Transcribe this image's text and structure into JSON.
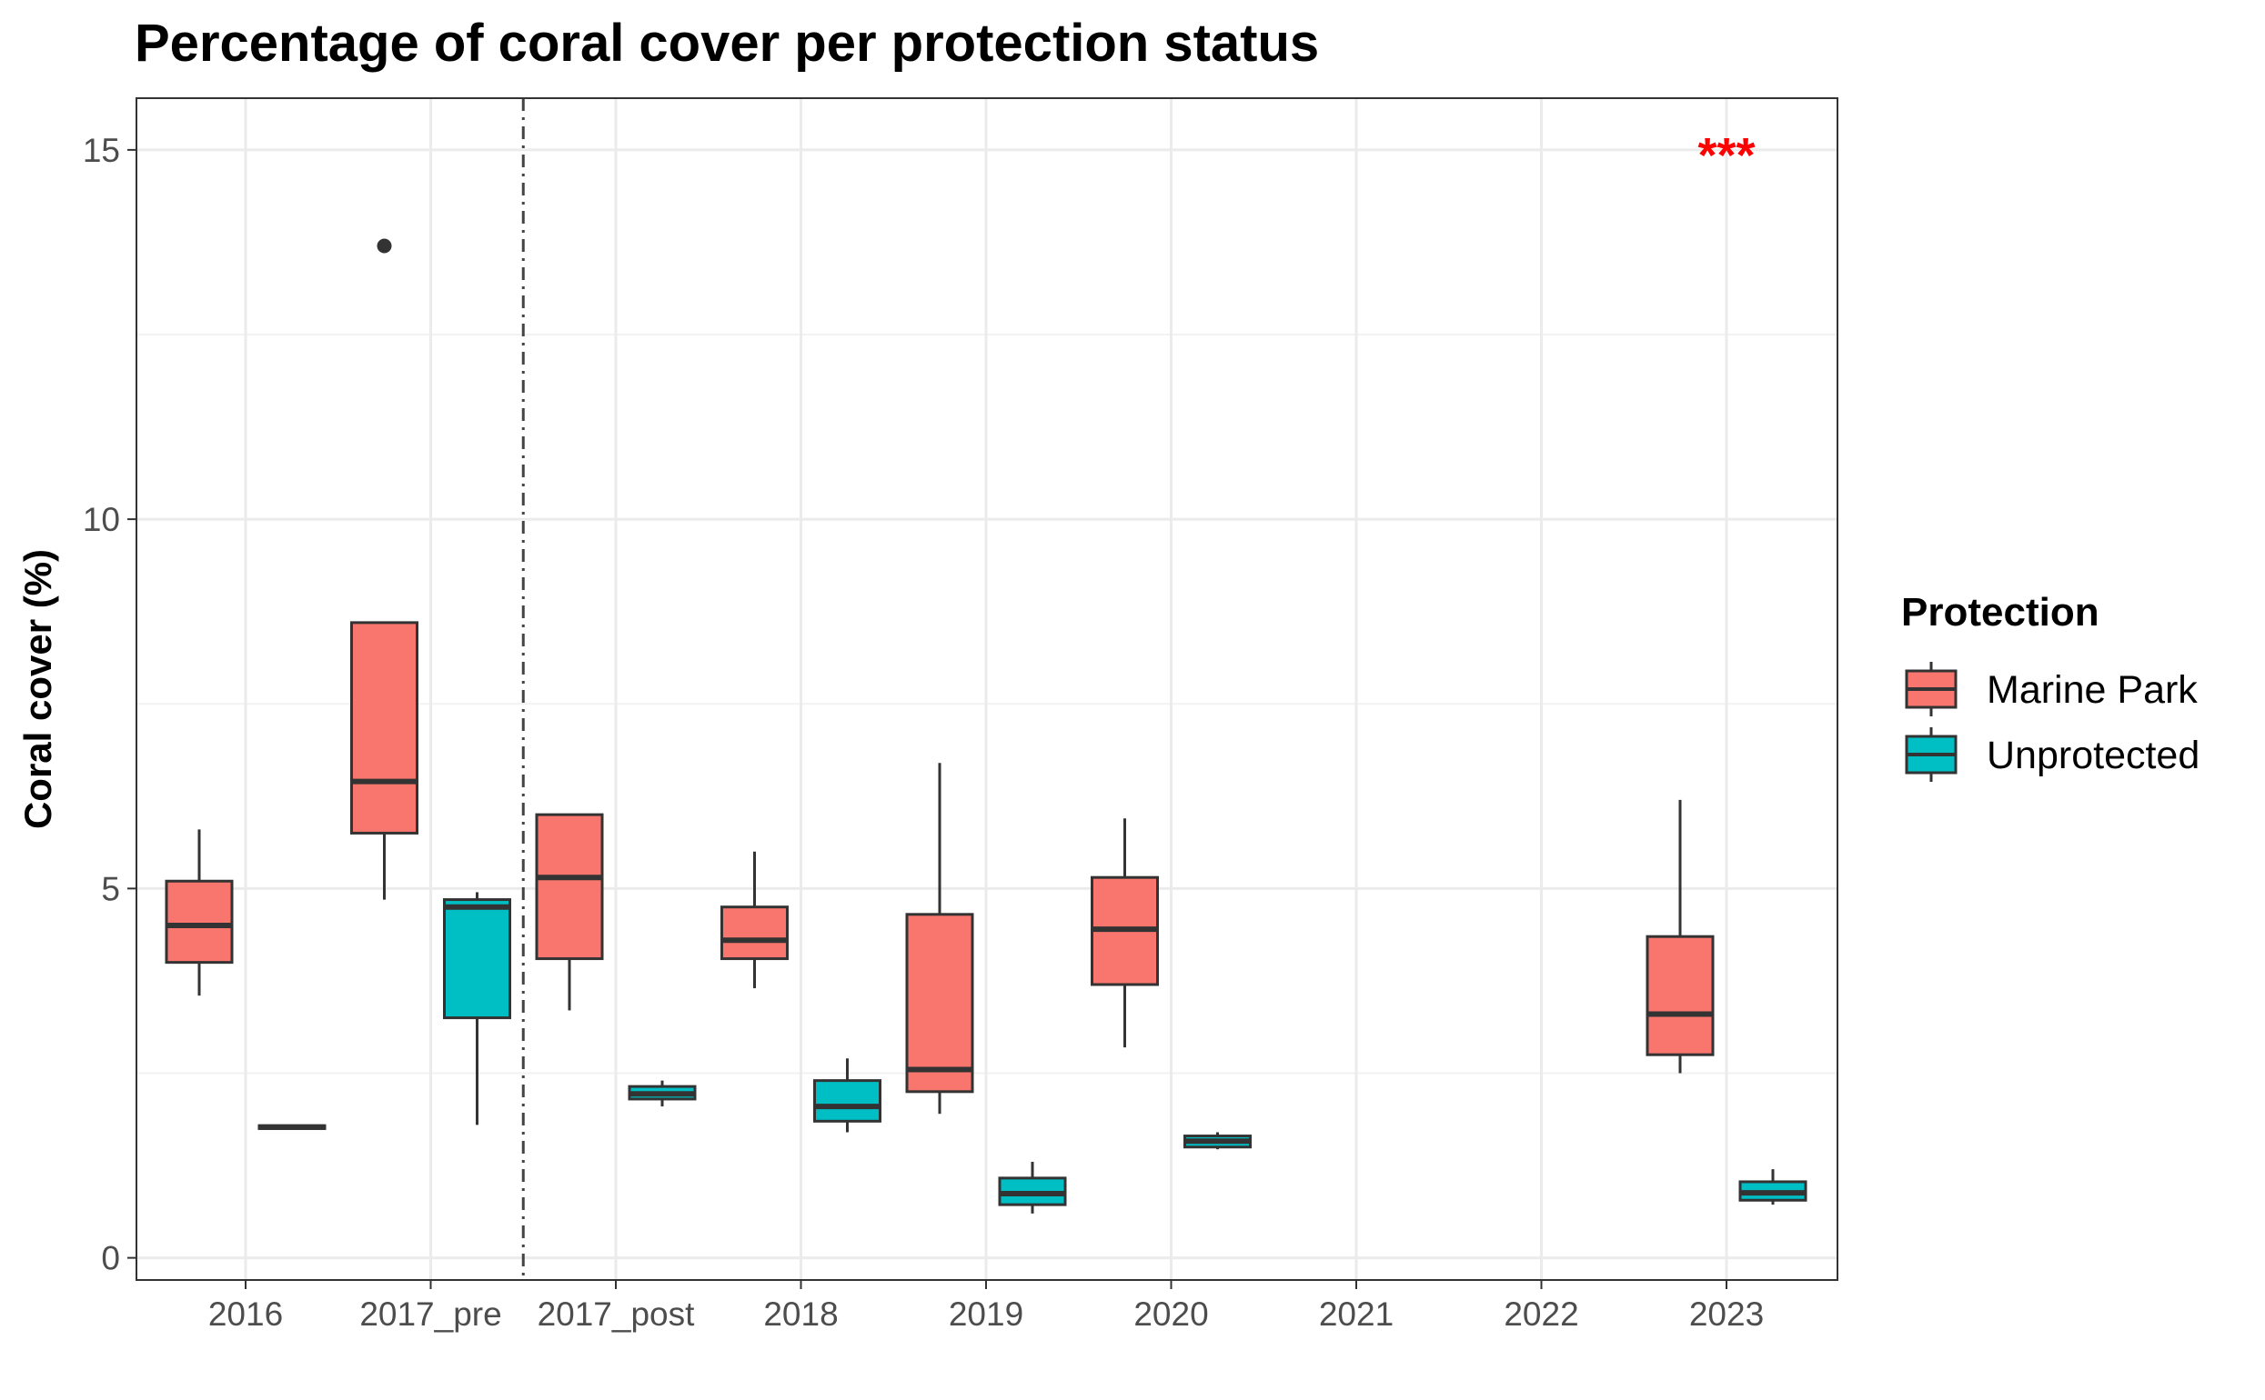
{
  "chart_data": {
    "type": "boxplot",
    "title": "Percentage of coral cover per protection status",
    "xlabel": "",
    "ylabel": "Coral cover (%)",
    "categories": [
      "2016",
      "2017_pre",
      "2017_post",
      "2018",
      "2019",
      "2020",
      "2021",
      "2022",
      "2023"
    ],
    "ylim": [
      -0.3,
      15.7
    ],
    "yticks": [
      0,
      5,
      10,
      15
    ],
    "grid": true,
    "vline": {
      "after_category": "2017_pre",
      "style": "dotdash"
    },
    "legend": {
      "title": "Protection",
      "position": "right"
    },
    "annotations": [
      {
        "category": "2023",
        "y": 15.1,
        "text": "***",
        "color": "#ff0000"
      }
    ],
    "series": [
      {
        "name": "Marine Park",
        "color": "#f8766d",
        "boxes": [
          {
            "category": "2016",
            "lower_whisker": 3.55,
            "q1": 4.0,
            "median": 4.5,
            "q3": 5.1,
            "upper_whisker": 5.8,
            "outliers": []
          },
          {
            "category": "2017_pre",
            "lower_whisker": 4.85,
            "q1": 5.75,
            "median": 6.45,
            "q3": 8.6,
            "upper_whisker": 8.6,
            "outliers": [
              13.7
            ]
          },
          {
            "category": "2017_post",
            "lower_whisker": 3.35,
            "q1": 4.05,
            "median": 5.15,
            "q3": 6.0,
            "upper_whisker": 6.0,
            "outliers": []
          },
          {
            "category": "2018",
            "lower_whisker": 3.65,
            "q1": 4.05,
            "median": 4.3,
            "q3": 4.75,
            "upper_whisker": 5.5,
            "outliers": []
          },
          {
            "category": "2019",
            "lower_whisker": 1.95,
            "q1": 2.25,
            "median": 2.55,
            "q3": 4.65,
            "upper_whisker": 6.7,
            "outliers": []
          },
          {
            "category": "2020",
            "lower_whisker": 2.85,
            "q1": 3.7,
            "median": 4.45,
            "q3": 5.15,
            "upper_whisker": 5.95,
            "outliers": []
          },
          {
            "category": "2023",
            "lower_whisker": 2.5,
            "q1": 2.75,
            "median": 3.3,
            "q3": 4.35,
            "upper_whisker": 6.2,
            "outliers": []
          }
        ]
      },
      {
        "name": "Unprotected",
        "color": "#00bfc4",
        "boxes": [
          {
            "category": "2016",
            "lower_whisker": 1.75,
            "q1": 1.75,
            "median": 1.77,
            "q3": 1.79,
            "upper_whisker": 1.79,
            "outliers": []
          },
          {
            "category": "2017_pre",
            "lower_whisker": 1.8,
            "q1": 3.25,
            "median": 4.75,
            "q3": 4.85,
            "upper_whisker": 4.95,
            "outliers": []
          },
          {
            "category": "2017_post",
            "lower_whisker": 2.05,
            "q1": 2.15,
            "median": 2.22,
            "q3": 2.32,
            "upper_whisker": 2.4,
            "outliers": []
          },
          {
            "category": "2018",
            "lower_whisker": 1.7,
            "q1": 1.85,
            "median": 2.05,
            "q3": 2.4,
            "upper_whisker": 2.7,
            "outliers": []
          },
          {
            "category": "2019",
            "lower_whisker": 0.6,
            "q1": 0.72,
            "median": 0.87,
            "q3": 1.08,
            "upper_whisker": 1.3,
            "outliers": []
          },
          {
            "category": "2020",
            "lower_whisker": 1.47,
            "q1": 1.5,
            "median": 1.58,
            "q3": 1.65,
            "upper_whisker": 1.7,
            "outliers": []
          },
          {
            "category": "2023",
            "lower_whisker": 0.72,
            "q1": 0.78,
            "median": 0.88,
            "q3": 1.03,
            "upper_whisker": 1.2,
            "outliers": []
          }
        ]
      }
    ]
  }
}
